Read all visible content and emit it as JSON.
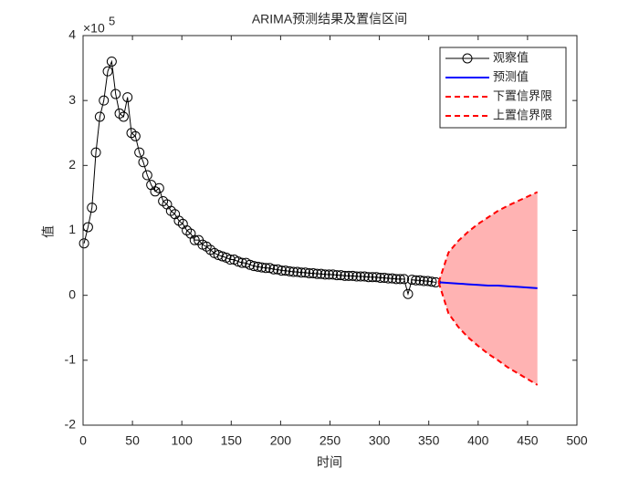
{
  "chart_data": {
    "type": "line",
    "title": "ARIMA预测结果及置信区间",
    "x_label": "时间",
    "y_label": "值",
    "y_exponent": {
      "base": "×10",
      "power": "5"
    },
    "xlim": [
      0,
      500
    ],
    "ylim": [
      -2,
      4
    ],
    "xticks": [
      0,
      50,
      100,
      150,
      200,
      250,
      300,
      350,
      400,
      450,
      500
    ],
    "yticks": [
      -2,
      -1,
      0,
      1,
      2,
      3,
      4
    ],
    "legend": "northeast",
    "band_color": "#ffb3b3",
    "series": [
      {
        "name": "观察值",
        "color": "#000000",
        "marker": "circle",
        "x": [
          1,
          5,
          9,
          13,
          17,
          21,
          25,
          29,
          33,
          37,
          41,
          45,
          49,
          53,
          57,
          61,
          65,
          69,
          73,
          77,
          81,
          85,
          89,
          93,
          97,
          101,
          105,
          109,
          113,
          117,
          121,
          125,
          129,
          133,
          137,
          141,
          145,
          149,
          153,
          157,
          161,
          165,
          169,
          173,
          177,
          181,
          185,
          189,
          193,
          197,
          201,
          205,
          209,
          213,
          217,
          221,
          225,
          229,
          233,
          237,
          241,
          245,
          249,
          253,
          257,
          261,
          265,
          269,
          273,
          277,
          281,
          285,
          289,
          293,
          297,
          301,
          305,
          309,
          313,
          317,
          321,
          325,
          329,
          333,
          337,
          341,
          345,
          349,
          353,
          357
        ],
        "values": [
          0.8,
          1.05,
          1.35,
          2.2,
          2.75,
          3.0,
          3.45,
          3.6,
          3.1,
          2.8,
          2.75,
          3.05,
          2.5,
          2.45,
          2.2,
          2.05,
          1.85,
          1.7,
          1.6,
          1.65,
          1.45,
          1.4,
          1.3,
          1.25,
          1.15,
          1.1,
          1.0,
          0.95,
          0.85,
          0.85,
          0.78,
          0.75,
          0.7,
          0.65,
          0.62,
          0.6,
          0.58,
          0.55,
          0.55,
          0.52,
          0.5,
          0.5,
          0.47,
          0.45,
          0.44,
          0.43,
          0.42,
          0.42,
          0.4,
          0.4,
          0.38,
          0.38,
          0.37,
          0.36,
          0.36,
          0.35,
          0.35,
          0.34,
          0.34,
          0.33,
          0.33,
          0.32,
          0.32,
          0.32,
          0.31,
          0.31,
          0.3,
          0.3,
          0.3,
          0.29,
          0.29,
          0.29,
          0.28,
          0.28,
          0.28,
          0.27,
          0.27,
          0.26,
          0.26,
          0.25,
          0.25,
          0.25,
          0.02,
          0.24,
          0.23,
          0.23,
          0.22,
          0.22,
          0.21,
          0.2
        ]
      },
      {
        "name": "预测值",
        "color": "#0000ff",
        "width": 2,
        "x": [
          360,
          370,
          380,
          390,
          400,
          410,
          420,
          430,
          440,
          450,
          460
        ],
        "values": [
          0.2,
          0.19,
          0.18,
          0.17,
          0.16,
          0.15,
          0.15,
          0.14,
          0.13,
          0.12,
          0.11
        ]
      },
      {
        "name": "下置信界限",
        "color": "#ff0000",
        "dashed": true,
        "width": 2,
        "x": [
          360,
          370,
          380,
          390,
          400,
          410,
          420,
          430,
          440,
          450,
          460
        ],
        "values": [
          0.2,
          -0.28,
          -0.49,
          -0.65,
          -0.78,
          -0.9,
          -1.0,
          -1.11,
          -1.2,
          -1.29,
          -1.38
        ]
      },
      {
        "name": "上置信界限",
        "color": "#ff0000",
        "dashed": true,
        "width": 2,
        "x": [
          360,
          370,
          380,
          390,
          400,
          410,
          420,
          430,
          440,
          450,
          460
        ],
        "values": [
          0.2,
          0.66,
          0.84,
          0.98,
          1.1,
          1.2,
          1.3,
          1.38,
          1.45,
          1.52,
          1.59
        ]
      }
    ]
  }
}
